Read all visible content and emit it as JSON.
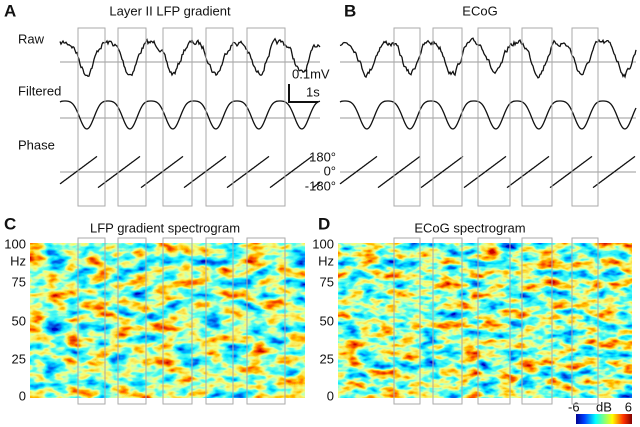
{
  "panel_a": {
    "label": "A",
    "title": "Layer II LFP gradient"
  },
  "panel_b": {
    "label": "B",
    "title": "ECoG"
  },
  "rows": {
    "raw": "Raw",
    "filtered": "Filtered",
    "phase": "Phase"
  },
  "scale_bar": {
    "amplitude": "0.1mV",
    "time": "1s"
  },
  "phase_axis": [
    "180°",
    "0°",
    "-180°"
  ],
  "panel_c": {
    "label": "C",
    "title": "LFP gradient spectrogram",
    "y_axis": [
      "100",
      "Hz",
      "75",
      "50",
      "25",
      "0"
    ]
  },
  "panel_d": {
    "label": "D",
    "title": "ECoG spectrogram",
    "y_axis": [
      "100",
      "Hz",
      "75",
      "50",
      "25",
      "0"
    ]
  },
  "colorbar": {
    "min": "-6",
    "unit": "dB",
    "max": "6"
  }
}
